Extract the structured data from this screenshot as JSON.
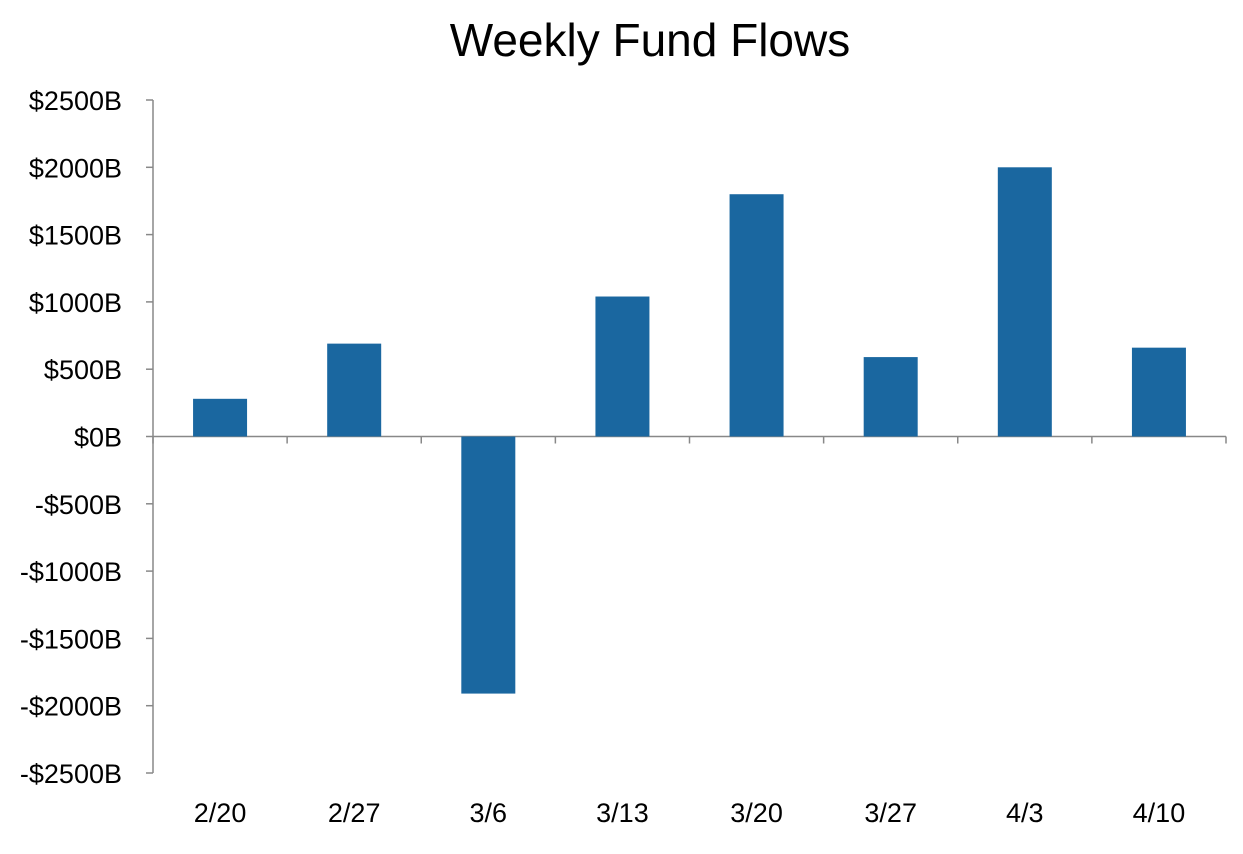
{
  "chart_data": {
    "type": "bar",
    "title": "Weekly Fund Flows",
    "xlabel": "",
    "ylabel": "",
    "categories": [
      "2/20",
      "2/27",
      "3/6",
      "3/13",
      "3/20",
      "3/27",
      "4/3",
      "4/10"
    ],
    "values": [
      280,
      690,
      -1910,
      1040,
      1800,
      590,
      2000,
      660
    ],
    "ylim": [
      -2500,
      2500
    ],
    "yticks": [
      2500,
      2000,
      1500,
      1000,
      500,
      0,
      -500,
      -1000,
      -1500,
      -2000,
      -2500
    ],
    "ytick_labels": [
      "$2500B",
      "$2000B",
      "$1500B",
      "$1000B",
      "$500B",
      "$0B",
      "-$500B",
      "-$1000B",
      "-$1500B",
      "-$2000B",
      "-$2500B"
    ],
    "grid": false,
    "legend": "none",
    "bar_color": "#1a67a0",
    "axis_color": "#888888"
  }
}
